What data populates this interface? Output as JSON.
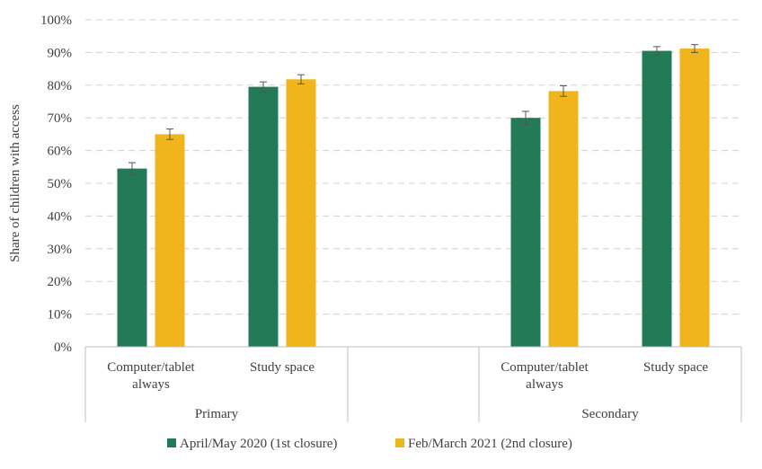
{
  "chart_data": {
    "type": "bar",
    "title": "",
    "ylabel": "Share of children with access",
    "xlabel": "",
    "ylim": [
      0,
      100
    ],
    "yticks": [
      0,
      10,
      20,
      30,
      40,
      50,
      60,
      70,
      80,
      90,
      100
    ],
    "ytick_suffix": "%",
    "grid": true,
    "groups": [
      {
        "label": "Primary",
        "categories": [
          {
            "label_lines": [
              "Computer/tablet",
              "always"
            ]
          },
          {
            "label_lines": [
              "Study space"
            ]
          }
        ]
      },
      {
        "label": "Secondary",
        "categories": [
          {
            "label_lines": [
              "Computer/tablet",
              "always"
            ]
          },
          {
            "label_lines": [
              "Study space"
            ]
          }
        ]
      }
    ],
    "series": [
      {
        "name": "April/May 2020 (1st closure)",
        "color": "#237a57",
        "values": [
          54.5,
          79.5,
          70.0,
          90.5
        ],
        "error": [
          1.8,
          1.5,
          2.0,
          1.3
        ]
      },
      {
        "name": "Feb/March 2021 (2nd closure)",
        "color": "#f0b51d",
        "values": [
          65.0,
          81.8,
          78.2,
          91.2
        ],
        "error": [
          1.6,
          1.4,
          1.6,
          1.2
        ]
      }
    ],
    "legend_position": "bottom"
  }
}
